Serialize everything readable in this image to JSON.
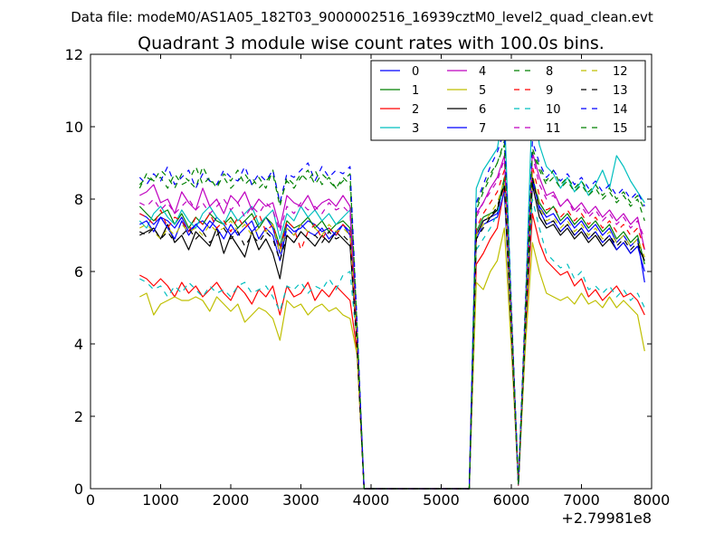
{
  "suptitle": "Data file: modeM0/AS1A05_182T03_9000002516_16939cztM0_level2_quad_clean.evt",
  "chart_data": {
    "type": "line",
    "title": "Quadrant 3 module wise count rates with 100.0s bins.",
    "xlabel": "",
    "ylabel": "",
    "xlim": [
      0,
      8000
    ],
    "ylim": [
      0,
      12
    ],
    "x_offset_label": "+2.79981e8",
    "xticks": [
      0,
      1000,
      2000,
      3000,
      4000,
      5000,
      6000,
      7000,
      8000
    ],
    "yticks": [
      0,
      2,
      4,
      6,
      8,
      10,
      12
    ],
    "legend_position": "top-right",
    "legend_columns": 4,
    "x": [
      700,
      800,
      900,
      1000,
      1100,
      1200,
      1300,
      1400,
      1500,
      1600,
      1700,
      1800,
      1900,
      2000,
      2100,
      2200,
      2300,
      2400,
      2500,
      2600,
      2700,
      2800,
      2900,
      3000,
      3100,
      3200,
      3300,
      3400,
      3500,
      3600,
      3700,
      3800,
      3900,
      4000,
      5400,
      5500,
      5600,
      5700,
      5800,
      5900,
      6000,
      6100,
      6200,
      6300,
      6400,
      6500,
      6600,
      6700,
      6800,
      6900,
      7000,
      7100,
      7200,
      7300,
      7400,
      7500,
      7600,
      7700,
      7800,
      7900
    ],
    "series": [
      {
        "name": "0",
        "color": "#0000ff",
        "dash": "solid",
        "values": [
          7.6,
          7.5,
          7.3,
          7.5,
          7.4,
          7.2,
          7.5,
          7.1,
          7.3,
          7.4,
          7.2,
          7.5,
          7.3,
          7.0,
          7.2,
          7.4,
          7.1,
          7.3,
          7.5,
          7.2,
          6.5,
          7.3,
          7.1,
          7.2,
          7.4,
          7.3,
          7.1,
          7.2,
          7.0,
          7.3,
          7.1,
          4.1,
          0.0,
          0.0,
          0.0,
          7.0,
          7.4,
          7.5,
          7.6,
          8.5,
          4.5,
          0.1,
          4.5,
          8.5,
          7.8,
          7.5,
          7.6,
          7.3,
          7.5,
          7.2,
          7.4,
          7.1,
          7.3,
          7.0,
          7.2,
          6.8,
          7.0,
          6.7,
          6.9,
          5.7
        ]
      },
      {
        "name": "1",
        "color": "#008000",
        "dash": "solid",
        "values": [
          7.8,
          7.6,
          7.4,
          7.6,
          7.7,
          7.3,
          7.6,
          7.2,
          7.5,
          7.3,
          7.6,
          7.4,
          7.3,
          7.5,
          7.2,
          7.4,
          7.6,
          7.2,
          7.5,
          7.3,
          6.7,
          7.4,
          7.2,
          7.3,
          7.5,
          7.2,
          7.4,
          7.1,
          7.3,
          7.4,
          7.2,
          4.2,
          0.0,
          0.0,
          0.0,
          7.1,
          7.5,
          7.6,
          7.7,
          8.6,
          4.6,
          0.1,
          4.6,
          8.6,
          7.9,
          7.6,
          7.8,
          7.4,
          7.6,
          7.3,
          7.5,
          7.2,
          7.4,
          7.1,
          7.3,
          6.9,
          7.1,
          6.8,
          7.0,
          6.2
        ]
      },
      {
        "name": "2",
        "color": "#ff0000",
        "dash": "solid",
        "values": [
          5.9,
          5.8,
          5.6,
          5.8,
          5.6,
          5.3,
          5.7,
          5.4,
          5.6,
          5.3,
          5.5,
          5.7,
          5.4,
          5.2,
          5.6,
          5.4,
          5.1,
          5.5,
          5.3,
          5.6,
          4.8,
          5.6,
          5.3,
          5.4,
          5.7,
          5.2,
          5.5,
          5.3,
          5.6,
          5.4,
          5.2,
          3.8,
          0.0,
          0.0,
          0.0,
          6.2,
          6.5,
          6.9,
          7.2,
          8.3,
          4.3,
          0.1,
          4.3,
          7.6,
          6.8,
          6.3,
          6.1,
          5.9,
          6.0,
          5.6,
          5.8,
          5.3,
          5.5,
          5.2,
          5.4,
          5.6,
          5.3,
          5.4,
          5.2,
          4.8
        ]
      },
      {
        "name": "3",
        "color": "#00bfbf",
        "dash": "solid",
        "values": [
          7.4,
          7.2,
          7.6,
          7.8,
          7.5,
          7.3,
          7.7,
          7.4,
          7.2,
          7.6,
          7.8,
          7.5,
          7.3,
          7.7,
          7.4,
          7.6,
          7.8,
          7.3,
          7.5,
          7.7,
          6.9,
          7.6,
          7.4,
          7.8,
          7.5,
          7.7,
          7.4,
          7.6,
          7.3,
          7.5,
          7.7,
          4.3,
          0.0,
          0.0,
          0.0,
          8.3,
          8.8,
          9.1,
          9.4,
          10.5,
          5.0,
          0.1,
          5.0,
          10.8,
          9.5,
          8.9,
          8.7,
          8.3,
          8.6,
          8.2,
          8.5,
          8.1,
          8.4,
          8.8,
          8.3,
          9.2,
          8.9,
          8.5,
          8.2,
          7.9
        ]
      },
      {
        "name": "4",
        "color": "#bf00bf",
        "dash": "solid",
        "values": [
          8.1,
          8.2,
          8.4,
          7.9,
          8.0,
          7.6,
          8.2,
          7.9,
          7.7,
          8.3,
          7.8,
          8.0,
          7.6,
          8.1,
          7.9,
          8.2,
          7.7,
          8.0,
          7.8,
          7.9,
          7.2,
          8.1,
          7.9,
          7.8,
          8.1,
          7.7,
          7.9,
          8.0,
          7.8,
          8.1,
          7.8,
          4.4,
          0.0,
          0.0,
          0.0,
          7.6,
          7.9,
          8.3,
          8.6,
          9.2,
          4.8,
          0.1,
          4.8,
          9.3,
          8.6,
          8.1,
          8.2,
          7.8,
          8.0,
          7.7,
          7.9,
          7.6,
          7.8,
          7.5,
          7.7,
          7.4,
          7.6,
          7.3,
          7.5,
          6.6
        ]
      },
      {
        "name": "5",
        "color": "#bfbf00",
        "dash": "solid",
        "values": [
          5.3,
          5.4,
          4.8,
          5.1,
          5.2,
          5.3,
          5.2,
          5.2,
          5.3,
          5.2,
          4.9,
          5.3,
          5.1,
          4.9,
          5.1,
          4.6,
          4.8,
          5.0,
          4.9,
          4.7,
          4.1,
          5.2,
          5.0,
          5.1,
          4.8,
          5.0,
          5.1,
          4.9,
          5.0,
          4.8,
          4.7,
          3.7,
          0.0,
          0.0,
          0.0,
          5.7,
          5.5,
          6.0,
          6.3,
          7.2,
          3.9,
          0.1,
          3.9,
          6.8,
          6.0,
          5.4,
          5.3,
          5.2,
          5.3,
          5.1,
          5.4,
          5.1,
          5.2,
          5.0,
          5.3,
          5.0,
          5.2,
          5.0,
          4.8,
          3.8
        ]
      },
      {
        "name": "6",
        "color": "#000000",
        "dash": "solid",
        "values": [
          7.0,
          7.1,
          7.2,
          6.9,
          7.3,
          6.8,
          7.0,
          6.6,
          7.1,
          6.9,
          6.7,
          7.2,
          6.5,
          7.0,
          6.7,
          6.4,
          7.1,
          6.6,
          6.9,
          6.5,
          5.8,
          7.0,
          6.8,
          7.1,
          6.9,
          6.7,
          7.0,
          6.8,
          7.1,
          6.9,
          6.7,
          4.0,
          0.0,
          0.0,
          0.0,
          7.0,
          7.4,
          7.5,
          7.7,
          8.4,
          4.4,
          0.1,
          4.4,
          8.4,
          7.5,
          7.2,
          7.3,
          7.0,
          7.2,
          6.9,
          7.1,
          6.8,
          7.0,
          6.7,
          6.9,
          6.6,
          6.8,
          6.5,
          6.7,
          6.3
        ]
      },
      {
        "name": "7",
        "color": "#0000ff",
        "dash": "solid",
        "values": [
          7.3,
          7.4,
          7.1,
          7.5,
          7.2,
          6.9,
          7.4,
          7.0,
          7.3,
          7.1,
          7.4,
          7.2,
          6.9,
          7.3,
          7.0,
          7.2,
          7.4,
          6.9,
          7.2,
          7.0,
          6.3,
          7.2,
          7.0,
          7.3,
          7.1,
          7.0,
          7.2,
          6.9,
          7.1,
          7.3,
          7.0,
          4.0,
          0.0,
          0.0,
          0.0,
          6.9,
          7.3,
          7.4,
          7.5,
          8.2,
          4.4,
          0.1,
          4.4,
          8.6,
          7.7,
          7.3,
          7.4,
          7.1,
          7.3,
          7.0,
          7.2,
          6.9,
          7.1,
          6.8,
          7.0,
          6.6,
          6.8,
          6.5,
          6.7,
          6.0
        ]
      },
      {
        "name": "8",
        "color": "#008000",
        "dash": "dashed",
        "values": [
          8.3,
          8.7,
          8.5,
          8.6,
          8.3,
          8.7,
          8.4,
          8.5,
          8.3,
          8.9,
          8.5,
          8.4,
          8.6,
          8.3,
          8.5,
          8.7,
          8.4,
          8.6,
          8.3,
          8.8,
          7.9,
          8.5,
          8.3,
          8.6,
          8.8,
          8.4,
          8.7,
          8.5,
          8.3,
          8.6,
          8.4,
          4.5,
          0.0,
          0.0,
          0.0,
          7.8,
          8.3,
          8.7,
          9.0,
          9.6,
          5.0,
          0.1,
          5.0,
          9.4,
          8.9,
          8.5,
          8.8,
          8.4,
          8.6,
          8.3,
          8.5,
          8.2,
          8.4,
          8.1,
          8.3,
          8.0,
          8.2,
          7.9,
          8.1,
          7.7
        ]
      },
      {
        "name": "9",
        "color": "#ff0000",
        "dash": "dashed",
        "values": [
          7.6,
          7.5,
          7.3,
          7.7,
          7.2,
          7.5,
          7.4,
          7.1,
          7.5,
          7.3,
          7.6,
          7.2,
          7.4,
          7.1,
          7.5,
          7.2,
          7.4,
          7.6,
          7.1,
          7.3,
          6.6,
          7.4,
          7.2,
          6.6,
          7.1,
          7.3,
          6.9,
          7.2,
          7.0,
          7.3,
          7.1,
          4.1,
          0.0,
          0.0,
          0.0,
          7.2,
          7.6,
          7.9,
          8.2,
          8.8,
          4.6,
          0.1,
          4.6,
          8.9,
          8.1,
          7.7,
          7.8,
          7.5,
          7.7,
          7.4,
          7.6,
          7.3,
          7.5,
          7.2,
          7.4,
          7.1,
          7.3,
          7.0,
          7.2,
          6.6
        ]
      },
      {
        "name": "10",
        "color": "#00bfbf",
        "dash": "dashed",
        "values": [
          5.8,
          5.7,
          5.5,
          5.6,
          5.3,
          5.6,
          5.4,
          5.7,
          5.5,
          5.3,
          5.6,
          5.4,
          5.5,
          5.3,
          5.6,
          5.7,
          5.4,
          5.5,
          5.6,
          5.3,
          4.9,
          5.6,
          5.5,
          5.7,
          5.4,
          5.6,
          5.5,
          5.8,
          5.5,
          5.9,
          6.0,
          4.0,
          0.0,
          0.0,
          0.0,
          6.6,
          6.9,
          7.2,
          7.6,
          8.5,
          4.5,
          0.1,
          4.5,
          8.0,
          7.2,
          6.5,
          6.3,
          6.1,
          6.2,
          5.8,
          6.0,
          5.5,
          5.6,
          5.4,
          5.6,
          5.3,
          5.5,
          5.2,
          5.4,
          5.0
        ]
      },
      {
        "name": "11",
        "color": "#bf00bf",
        "dash": "dashed",
        "values": [
          7.9,
          7.8,
          8.0,
          7.7,
          7.9,
          7.6,
          7.8,
          8.0,
          7.7,
          7.9,
          7.6,
          7.8,
          8.0,
          7.7,
          7.9,
          7.5,
          7.8,
          7.6,
          7.9,
          7.7,
          7.1,
          7.8,
          7.6,
          7.9,
          7.7,
          7.8,
          7.6,
          7.9,
          7.7,
          7.8,
          7.6,
          4.3,
          0.0,
          0.0,
          0.0,
          7.5,
          7.9,
          8.2,
          8.5,
          9.1,
          4.7,
          0.1,
          4.7,
          9.2,
          8.4,
          8.0,
          8.1,
          7.8,
          8.0,
          7.6,
          7.8,
          7.5,
          7.7,
          7.4,
          7.6,
          7.3,
          7.5,
          7.2,
          7.4,
          6.9
        ]
      },
      {
        "name": "12",
        "color": "#bfbf00",
        "dash": "dashed",
        "values": [
          7.2,
          7.3,
          7.1,
          6.9,
          7.2,
          7.0,
          7.3,
          7.1,
          7.2,
          7.0,
          7.3,
          7.1,
          7.2,
          7.4,
          7.1,
          7.3,
          7.0,
          7.2,
          7.1,
          7.3,
          6.5,
          7.2,
          7.0,
          7.3,
          7.1,
          7.2,
          7.0,
          7.3,
          7.1,
          7.2,
          7.0,
          4.0,
          0.0,
          0.0,
          0.0,
          7.0,
          7.3,
          7.6,
          7.9,
          8.5,
          4.5,
          0.1,
          4.5,
          8.7,
          7.8,
          7.4,
          7.5,
          7.2,
          7.4,
          7.1,
          7.3,
          7.0,
          7.2,
          6.9,
          7.1,
          6.8,
          7.0,
          6.7,
          6.9,
          6.4
        ]
      },
      {
        "name": "13",
        "color": "#000000",
        "dash": "dashed",
        "values": [
          7.1,
          7.0,
          7.2,
          6.9,
          7.1,
          6.8,
          7.0,
          7.2,
          6.9,
          7.1,
          6.8,
          7.0,
          7.2,
          6.9,
          7.1,
          6.7,
          7.0,
          6.8,
          7.1,
          6.9,
          6.3,
          7.0,
          6.8,
          7.1,
          6.9,
          7.0,
          6.8,
          7.1,
          6.9,
          7.0,
          6.8,
          3.9,
          0.0,
          0.0,
          0.0,
          6.9,
          7.2,
          7.5,
          7.8,
          8.4,
          4.4,
          0.1,
          4.4,
          8.6,
          7.7,
          7.3,
          7.4,
          7.1,
          7.3,
          7.0,
          7.2,
          6.9,
          7.1,
          6.8,
          7.0,
          6.7,
          6.9,
          6.6,
          6.8,
          6.3
        ]
      },
      {
        "name": "14",
        "color": "#0000ff",
        "dash": "dashed",
        "values": [
          8.6,
          8.4,
          8.7,
          8.5,
          8.9,
          8.4,
          8.6,
          8.8,
          8.3,
          8.7,
          8.5,
          8.4,
          8.8,
          8.6,
          8.5,
          8.9,
          8.4,
          8.7,
          8.5,
          8.8,
          7.9,
          8.7,
          8.6,
          8.8,
          9.0,
          8.5,
          8.9,
          8.6,
          8.8,
          8.7,
          8.9,
          4.6,
          0.0,
          0.0,
          0.0,
          7.9,
          8.4,
          8.9,
          9.3,
          9.9,
          5.1,
          0.1,
          5.1,
          9.6,
          9.0,
          8.6,
          8.8,
          8.5,
          8.7,
          8.4,
          8.6,
          8.3,
          8.5,
          8.2,
          8.4,
          8.1,
          8.3,
          8.0,
          8.2,
          7.8
        ]
      },
      {
        "name": "15",
        "color": "#008000",
        "dash": "dashed",
        "values": [
          8.4,
          8.6,
          8.5,
          8.8,
          8.6,
          8.3,
          8.7,
          8.5,
          8.9,
          8.4,
          8.6,
          8.3,
          8.7,
          8.5,
          8.8,
          8.4,
          8.6,
          8.3,
          8.5,
          8.7,
          7.8,
          8.6,
          8.4,
          8.7,
          8.5,
          8.8,
          8.4,
          8.6,
          8.3,
          8.5,
          8.7,
          4.5,
          0.0,
          0.0,
          0.0,
          7.7,
          8.2,
          8.6,
          9.0,
          9.5,
          4.9,
          0.1,
          4.9,
          9.3,
          8.8,
          8.4,
          8.6,
          8.3,
          8.5,
          8.2,
          8.4,
          8.1,
          8.3,
          8.0,
          8.2,
          7.9,
          8.1,
          7.8,
          8.0,
          7.4
        ]
      }
    ]
  }
}
